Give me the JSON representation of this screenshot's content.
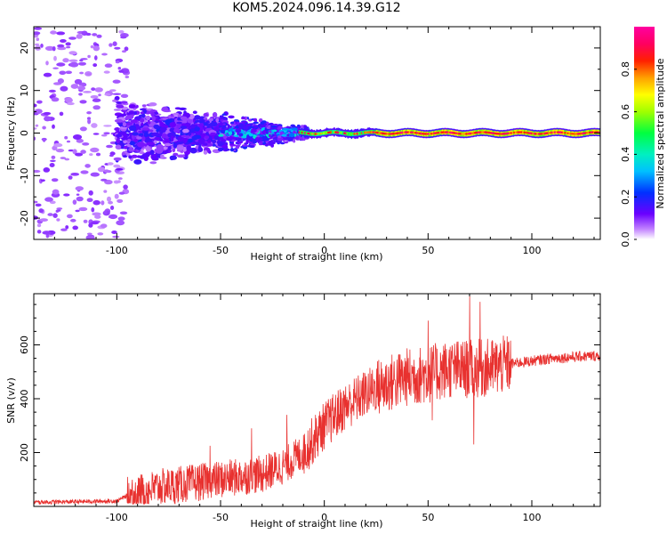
{
  "title": "KOM5.2024.096.14.39.G12",
  "chart_data": [
    {
      "type": "heatmap",
      "xlabel": "Height of straight line (km)",
      "ylabel": "Frequency (Hz)",
      "xlim": [
        -140,
        133
      ],
      "ylim": [
        -25,
        25
      ],
      "xticks": [
        -100,
        -50,
        0,
        50,
        100
      ],
      "yticks": [
        -20,
        -10,
        0,
        10,
        20
      ],
      "colorbar": {
        "label": "Normalized spectral amplitude",
        "range": [
          0,
          1
        ],
        "ticks": [
          "0.0",
          "0.2",
          "0.4",
          "0.6",
          "0.8"
        ],
        "colormap": "rainbow (purple-blue-cyan-green-yellow-red-magenta)"
      },
      "description_of_pattern": [
        {
          "x_range": [
            -140,
            -100
          ],
          "freq_spread": [
            -25,
            25
          ],
          "amplitude": [
            0.02,
            0.1
          ]
        },
        {
          "x_range": [
            -100,
            -50
          ],
          "freq_spread": [
            -8,
            8
          ],
          "amplitude": [
            0.05,
            0.2
          ]
        },
        {
          "x_range": [
            -50,
            -10
          ],
          "freq_spread": [
            -4,
            4
          ],
          "amplitude": [
            0.1,
            0.3
          ]
        },
        {
          "x_range": [
            -10,
            133
          ],
          "freq_spread": [
            -1,
            1
          ],
          "amplitude": [
            0.5,
            1.0
          ]
        }
      ]
    },
    {
      "type": "line",
      "xlabel": "Height of straight line (km)",
      "ylabel": "SNR (v/v)",
      "xlim": [
        -140,
        133
      ],
      "ylim": [
        0,
        790
      ],
      "xticks": [
        -100,
        -50,
        0,
        50,
        100
      ],
      "yticks": [
        200,
        400,
        600
      ],
      "color": "#e8312f",
      "envelope": {
        "x": [
          -140,
          -100,
          -95,
          -80,
          -60,
          -40,
          -30,
          -20,
          -10,
          0,
          10,
          20,
          25,
          40,
          50,
          60,
          70,
          80,
          90,
          100,
          110,
          120,
          133
        ],
        "y": [
          15,
          20,
          40,
          70,
          90,
          110,
          120,
          150,
          200,
          300,
          370,
          420,
          440,
          480,
          490,
          510,
          510,
          515,
          530,
          540,
          550,
          555,
          560
        ]
      },
      "spikes": [
        {
          "x": -55,
          "y": 225
        },
        {
          "x": -35,
          "y": 290
        },
        {
          "x": -18,
          "y": 340
        },
        {
          "x": 50,
          "y": 690
        },
        {
          "x": 52,
          "y": 320
        },
        {
          "x": 70,
          "y": 780
        },
        {
          "x": 72,
          "y": 230
        },
        {
          "x": 75,
          "y": 760
        }
      ]
    }
  ]
}
